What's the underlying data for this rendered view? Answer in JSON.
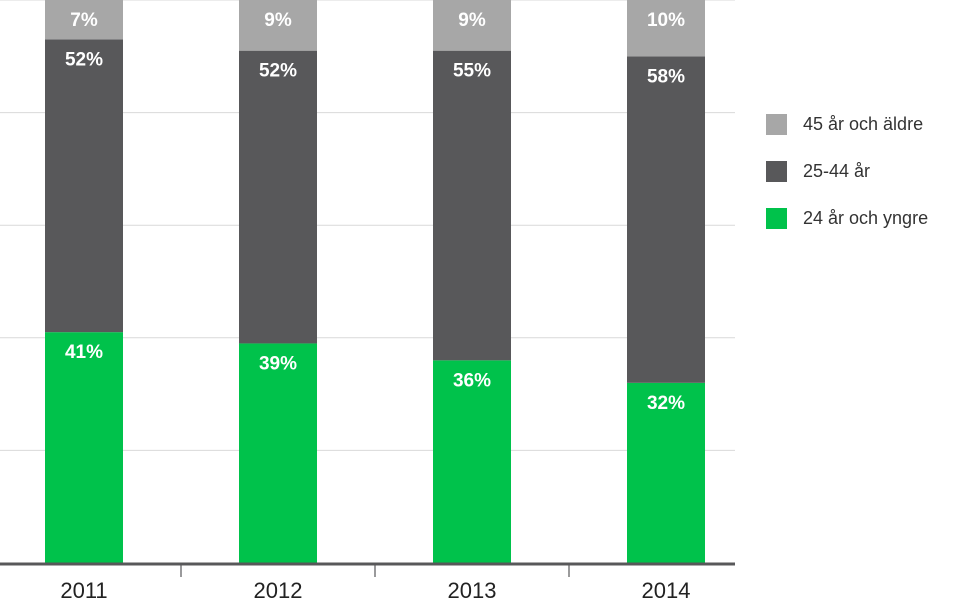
{
  "chart_data": {
    "type": "bar",
    "stacked": true,
    "percent_scale": true,
    "categories": [
      "2011",
      "2012",
      "2013",
      "2014"
    ],
    "series": [
      {
        "name": "24 år och yngre",
        "values": [
          41,
          39,
          36,
          32
        ],
        "color": "#00c24b"
      },
      {
        "name": "25-44 år",
        "values": [
          52,
          52,
          55,
          58
        ],
        "color": "#58585a"
      },
      {
        "name": "45 år och äldre",
        "values": [
          7,
          9,
          9,
          10
        ],
        "color": "#a7a7a7"
      }
    ],
    "value_suffix": "%",
    "ylim": [
      0,
      100
    ],
    "grid": true,
    "legend_position": "right"
  }
}
